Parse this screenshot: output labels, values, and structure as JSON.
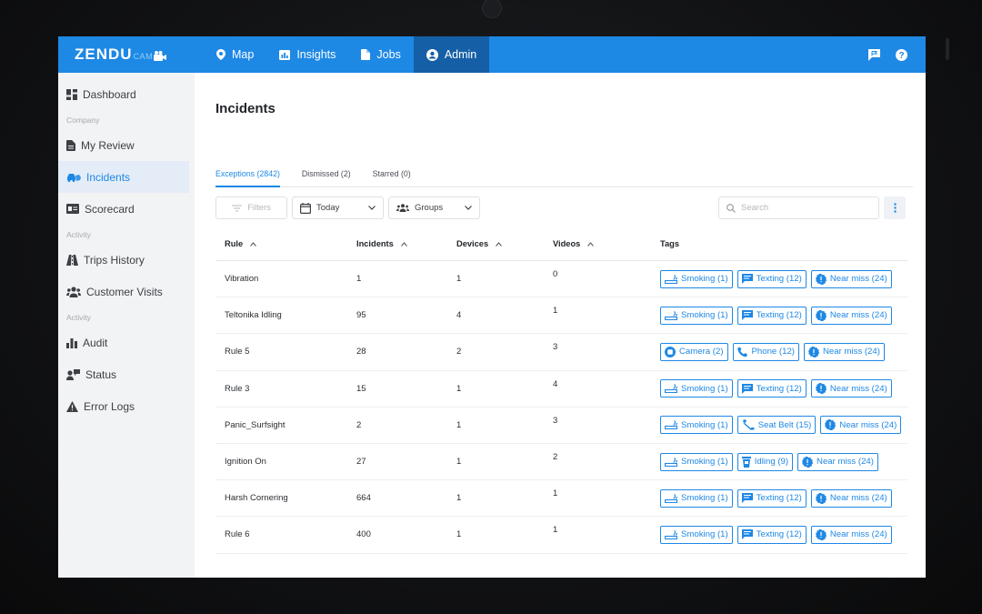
{
  "app": {
    "brand": "ZENDU",
    "brand_sub": "CAM"
  },
  "topnav": {
    "items": [
      {
        "label": "Map",
        "icon": "map-pin-icon"
      },
      {
        "label": "Insights",
        "icon": "bar-chart-icon"
      },
      {
        "label": "Jobs",
        "icon": "document-icon"
      },
      {
        "label": "Admin",
        "icon": "user-circle-icon",
        "active": true
      }
    ],
    "right_icons": [
      "flag-message-icon",
      "help-icon"
    ]
  },
  "sidebar": {
    "dashboard": "Dashboard",
    "section_company": "Company",
    "my_review": "My Review",
    "incidents": "Incidents",
    "scorecard": "Scorecard",
    "section_activity_1": "Activity",
    "trips_history": "Trips History",
    "customer_visits": "Customer Visits",
    "section_activity_2": "Activity",
    "audit": "Audit",
    "status": "Status",
    "error_logs": "Error Logs"
  },
  "page": {
    "title": "Incidents",
    "tabs": [
      {
        "label": "Exceptions (2842)",
        "active": true
      },
      {
        "label": "Dismissed (2)"
      },
      {
        "label": "Starred (0)"
      }
    ]
  },
  "toolbar": {
    "filters_label": "Filters",
    "date_label": "Today",
    "groups_label": "Groups",
    "search_placeholder": "Search"
  },
  "table": {
    "headers": {
      "rule": "Rule",
      "incidents": "Incidents",
      "devices": "Devices",
      "videos": "Videos",
      "tags": "Tags"
    },
    "rows": [
      {
        "rule": "Vibration",
        "incidents": "1",
        "devices": "1",
        "videos": "0",
        "tags": [
          {
            "icon": "smoking-icon",
            "label": "Smoking (1)"
          },
          {
            "icon": "texting-icon",
            "label": "Texting (12)"
          },
          {
            "icon": "alert-badge-icon",
            "label": "Near miss (24)"
          }
        ]
      },
      {
        "rule": "Teltonika Idling",
        "incidents": "95",
        "devices": "4",
        "videos": "1",
        "tags": [
          {
            "icon": "smoking-icon",
            "label": "Smoking (1)"
          },
          {
            "icon": "texting-icon",
            "label": "Texting (12)"
          },
          {
            "icon": "alert-badge-icon",
            "label": "Near miss (24)"
          }
        ]
      },
      {
        "rule": "Rule 5",
        "incidents": "28",
        "devices": "2",
        "videos": "3",
        "tags": [
          {
            "icon": "camera-icon",
            "label": "Camera (2)"
          },
          {
            "icon": "phone-icon",
            "label": "Phone (12)"
          },
          {
            "icon": "alert-badge-icon",
            "label": "Near miss (24)"
          }
        ]
      },
      {
        "rule": "Rule 3",
        "incidents": "15",
        "devices": "1",
        "videos": "4",
        "tags": [
          {
            "icon": "smoking-icon",
            "label": "Smoking (1)"
          },
          {
            "icon": "texting-icon",
            "label": "Texting (12)"
          },
          {
            "icon": "alert-badge-icon",
            "label": "Near miss (24)"
          }
        ]
      },
      {
        "rule": "Panic_Surfsight",
        "incidents": "2",
        "devices": "1",
        "videos": "3",
        "tags": [
          {
            "icon": "smoking-icon",
            "label": "Smoking (1)"
          },
          {
            "icon": "seat-belt-icon",
            "label": "Seat Belt (15)"
          },
          {
            "icon": "alert-badge-icon",
            "label": "Near miss (24)"
          }
        ]
      },
      {
        "rule": "Ignition On",
        "incidents": "27",
        "devices": "1",
        "videos": "2",
        "tags": [
          {
            "icon": "smoking-icon",
            "label": "Smoking (1)"
          },
          {
            "icon": "idling-icon",
            "label": "Idling (9)"
          },
          {
            "icon": "alert-badge-icon",
            "label": "Near miss (24)"
          }
        ]
      },
      {
        "rule": "Harsh Cornering",
        "incidents": "664",
        "devices": "1",
        "videos": "1",
        "tags": [
          {
            "icon": "smoking-icon",
            "label": "Smoking (1)"
          },
          {
            "icon": "texting-icon",
            "label": "Texting (12)"
          },
          {
            "icon": "alert-badge-icon",
            "label": "Near miss (24)"
          }
        ]
      },
      {
        "rule": "Rule 6",
        "incidents": "400",
        "devices": "1",
        "videos": "1",
        "tags": [
          {
            "icon": "smoking-icon",
            "label": "Smoking (1)"
          },
          {
            "icon": "texting-icon",
            "label": "Texting (12)"
          },
          {
            "icon": "alert-badge-icon",
            "label": "Near miss (24)"
          }
        ]
      }
    ]
  },
  "colors": {
    "brand_blue": "#1e88e5",
    "nav_active": "#155fa6",
    "sidebar_bg": "#f2f3f5"
  }
}
